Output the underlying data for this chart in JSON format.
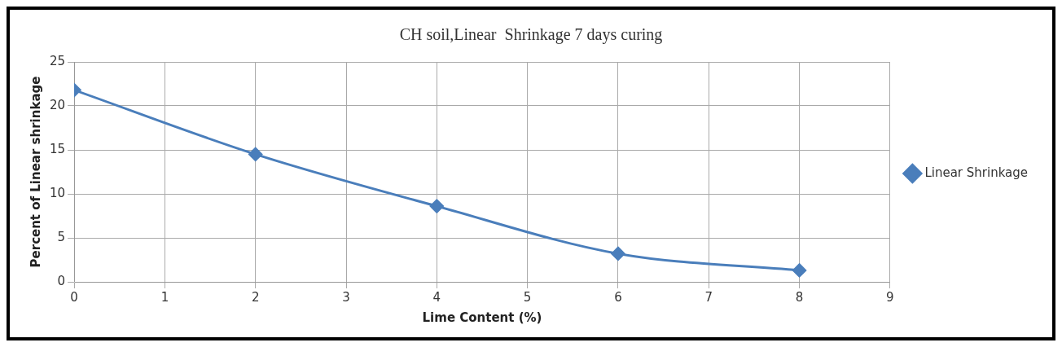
{
  "chart_data": {
    "type": "line",
    "title": "CH soil,Linear  Shrinkage 7 days curing",
    "xlabel": "Lime Content (%)",
    "ylabel": "Percent of Linear shrinkage",
    "x": [
      0,
      2,
      4,
      6,
      8
    ],
    "series": [
      {
        "name": "Linear Shrinkage",
        "color": "#4a7ebb",
        "values": [
          21.8,
          14.5,
          8.6,
          3.2,
          1.3
        ]
      }
    ],
    "xlim": [
      0,
      9
    ],
    "xticks": [
      0,
      1,
      2,
      3,
      4,
      5,
      6,
      7,
      8,
      9
    ],
    "ylim": [
      0,
      25
    ],
    "yticks": [
      0,
      5,
      10,
      15,
      20,
      25
    ],
    "grid": true,
    "legend": "right",
    "marker": "diamond",
    "line_style": "solid"
  }
}
